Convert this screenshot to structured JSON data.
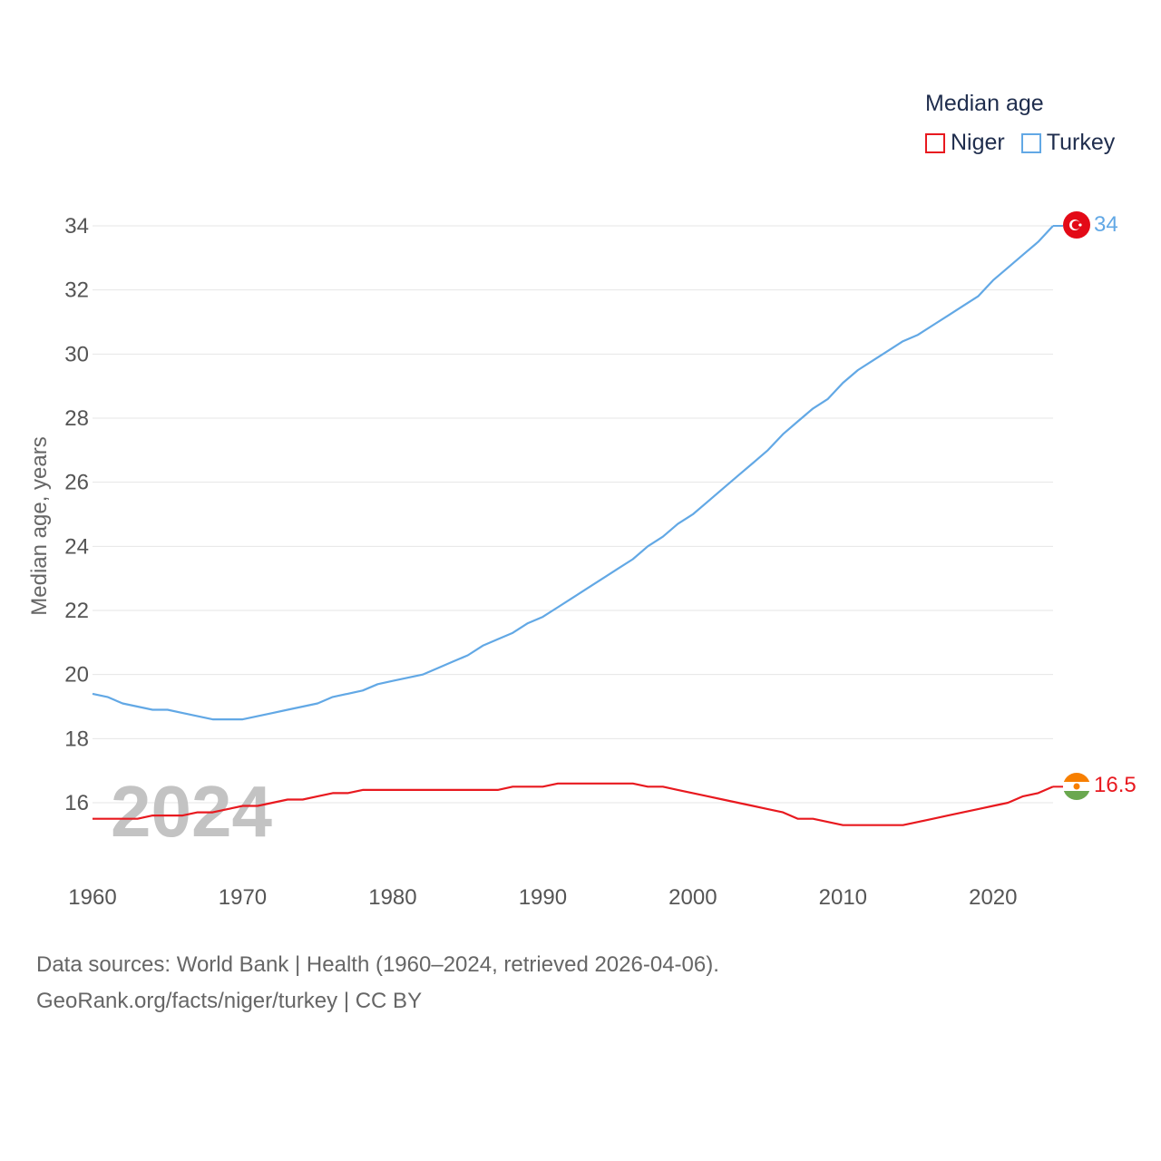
{
  "legend": {
    "title": "Median age",
    "items": [
      {
        "name": "Niger",
        "color": "#e8191f"
      },
      {
        "name": "Turkey",
        "color": "#62a8e5"
      }
    ]
  },
  "year_label": "2024",
  "source": {
    "line1": "Data sources: World Bank | Health (1960–2024, retrieved 2026-04-06).",
    "line2": "GeoRank.org/facts/niger/turkey | CC BY"
  },
  "chart_data": {
    "type": "line",
    "title": "Median age",
    "xlabel": "",
    "ylabel": "Median age, years",
    "xlim": [
      1960,
      2024
    ],
    "ylim": [
      14.5,
      34.3
    ],
    "x_ticks": [
      1960,
      1970,
      1980,
      1990,
      2000,
      2010,
      2020
    ],
    "y_ticks": [
      16,
      18,
      20,
      22,
      24,
      26,
      28,
      30,
      32,
      34
    ],
    "grid": true,
    "legend_position": "top-right",
    "x": [
      1960,
      1961,
      1962,
      1963,
      1964,
      1965,
      1966,
      1967,
      1968,
      1969,
      1970,
      1971,
      1972,
      1973,
      1974,
      1975,
      1976,
      1977,
      1978,
      1979,
      1980,
      1981,
      1982,
      1983,
      1984,
      1985,
      1986,
      1987,
      1988,
      1989,
      1990,
      1991,
      1992,
      1993,
      1994,
      1995,
      1996,
      1997,
      1998,
      1999,
      2000,
      2001,
      2002,
      2003,
      2004,
      2005,
      2006,
      2007,
      2008,
      2009,
      2010,
      2011,
      2012,
      2013,
      2014,
      2015,
      2016,
      2017,
      2018,
      2019,
      2020,
      2021,
      2022,
      2023,
      2024
    ],
    "series": [
      {
        "name": "Niger",
        "color": "#e8191f",
        "end_label": "16.5",
        "values": [
          15.5,
          15.5,
          15.5,
          15.5,
          15.6,
          15.6,
          15.6,
          15.7,
          15.7,
          15.8,
          15.9,
          15.9,
          16.0,
          16.1,
          16.1,
          16.2,
          16.3,
          16.3,
          16.4,
          16.4,
          16.4,
          16.4,
          16.4,
          16.4,
          16.4,
          16.4,
          16.4,
          16.4,
          16.5,
          16.5,
          16.5,
          16.6,
          16.6,
          16.6,
          16.6,
          16.6,
          16.6,
          16.5,
          16.5,
          16.4,
          16.3,
          16.2,
          16.1,
          16.0,
          15.9,
          15.8,
          15.7,
          15.5,
          15.5,
          15.4,
          15.3,
          15.3,
          15.3,
          15.3,
          15.3,
          15.4,
          15.5,
          15.6,
          15.7,
          15.8,
          15.9,
          16.0,
          16.2,
          16.3,
          16.5
        ]
      },
      {
        "name": "Turkey",
        "color": "#62a8e5",
        "end_label": "34",
        "values": [
          19.4,
          19.3,
          19.1,
          19.0,
          18.9,
          18.9,
          18.8,
          18.7,
          18.6,
          18.6,
          18.6,
          18.7,
          18.8,
          18.9,
          19.0,
          19.1,
          19.3,
          19.4,
          19.5,
          19.7,
          19.8,
          19.9,
          20.0,
          20.2,
          20.4,
          20.6,
          20.9,
          21.1,
          21.3,
          21.6,
          21.8,
          22.1,
          22.4,
          22.7,
          23.0,
          23.3,
          23.6,
          24.0,
          24.3,
          24.7,
          25.0,
          25.4,
          25.8,
          26.2,
          26.6,
          27.0,
          27.5,
          27.9,
          28.3,
          28.6,
          29.1,
          29.5,
          29.8,
          30.1,
          30.4,
          30.6,
          30.9,
          31.2,
          31.5,
          31.8,
          32.3,
          32.7,
          33.1,
          33.5,
          34.0
        ]
      }
    ]
  }
}
